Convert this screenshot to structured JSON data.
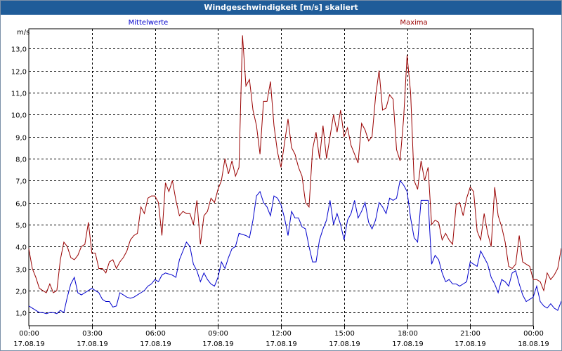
{
  "window": {
    "title": "Windgeschwindigkeit [m/s] skaliert"
  },
  "chart_data": {
    "type": "line",
    "title": "Windgeschwindigkeit [m/s] skaliert",
    "ylabel": "m/s",
    "ylim": [
      0.4,
      13.9
    ],
    "y_ticks": [
      "1,0",
      "2,0",
      "3,0",
      "4,0",
      "5,0",
      "6,0",
      "7,0",
      "8,0",
      "9,0",
      "10,0",
      "11,0",
      "12,0",
      "13,0"
    ],
    "x_ticks": [
      {
        "time": "00:00",
        "date": "17.08.19"
      },
      {
        "time": "03:00",
        "date": "17.08.19"
      },
      {
        "time": "06:00",
        "date": "17.08.19"
      },
      {
        "time": "09:00",
        "date": "17.08.19"
      },
      {
        "time": "12:00",
        "date": "17.08.19"
      },
      {
        "time": "15:00",
        "date": "17.08.19"
      },
      {
        "time": "18:00",
        "date": "17.08.19"
      },
      {
        "time": "21:00",
        "date": "17.08.19"
      },
      {
        "time": "00:00",
        "date": "18.08.19"
      }
    ],
    "grid": true,
    "interval_minutes": 10,
    "series": [
      {
        "name": "Mittelwerte",
        "color": "#0000cc",
        "values": [
          1.3,
          1.2,
          1.1,
          1.0,
          1.0,
          0.95,
          1.0,
          1.0,
          0.95,
          1.1,
          1.0,
          1.7,
          2.3,
          2.6,
          1.9,
          1.8,
          1.9,
          2.0,
          2.1,
          2.0,
          1.9,
          1.6,
          1.5,
          1.5,
          1.25,
          1.3,
          1.9,
          1.8,
          1.7,
          1.65,
          1.7,
          1.8,
          1.9,
          2.0,
          2.2,
          2.3,
          2.5,
          2.4,
          2.7,
          2.8,
          2.75,
          2.7,
          2.6,
          3.4,
          3.8,
          4.2,
          4.0,
          3.2,
          2.9,
          2.4,
          2.8,
          2.5,
          2.3,
          2.2,
          2.6,
          3.3,
          3.0,
          3.5,
          3.9,
          4.0,
          4.6,
          4.55,
          4.5,
          4.4,
          5.2,
          6.3,
          6.5,
          6.0,
          5.8,
          5.4,
          6.3,
          6.2,
          5.9,
          5.3,
          4.5,
          5.6,
          5.3,
          5.3,
          4.9,
          4.8,
          4.0,
          3.3,
          3.3,
          4.3,
          4.8,
          5.2,
          6.1,
          5.0,
          5.5,
          5.0,
          4.3,
          5.2,
          5.5,
          6.1,
          5.3,
          5.6,
          6.0,
          5.1,
          4.8,
          5.2,
          6.0,
          5.8,
          5.5,
          6.2,
          6.1,
          6.2,
          7.0,
          6.8,
          6.5,
          5.3,
          4.4,
          4.2,
          6.1,
          6.1,
          6.1,
          3.2,
          3.6,
          3.4,
          2.8,
          2.4,
          2.5,
          2.3,
          2.3,
          2.2,
          2.3,
          2.4,
          3.3,
          3.2,
          3.1,
          3.8,
          3.5,
          3.2,
          2.6,
          2.3,
          1.9,
          2.5,
          2.4,
          2.2,
          2.8,
          2.9,
          2.3,
          1.8,
          1.5,
          1.6,
          1.7,
          2.2,
          1.5,
          1.3,
          1.2,
          1.4,
          1.2,
          1.1,
          1.5,
          1.3,
          1.6,
          1.9,
          1.8,
          2.6,
          2.6,
          2.7,
          2.4,
          2.0,
          1.9
        ]
      },
      {
        "name": "Maxima",
        "color": "#990000",
        "values": [
          3.9,
          3.0,
          2.6,
          2.1,
          2.0,
          1.9,
          2.3,
          1.9,
          2.0,
          3.4,
          4.2,
          4.0,
          3.5,
          3.4,
          3.6,
          4.0,
          4.1,
          5.1,
          3.7,
          3.7,
          3.0,
          3.0,
          2.8,
          3.3,
          3.4,
          3.0,
          3.3,
          3.5,
          3.8,
          4.3,
          4.5,
          4.6,
          5.8,
          5.5,
          6.2,
          6.3,
          6.3,
          6.0,
          4.5,
          6.9,
          6.5,
          7.0,
          6.1,
          5.4,
          5.6,
          5.5,
          5.5,
          5.0,
          6.1,
          4.1,
          5.4,
          5.6,
          6.2,
          6.0,
          6.6,
          7.0,
          8.0,
          7.3,
          7.9,
          7.2,
          7.6,
          13.6,
          11.3,
          11.6,
          10.2,
          9.5,
          8.2,
          10.6,
          10.6,
          11.5,
          9.5,
          8.3,
          7.6,
          8.7,
          9.8,
          8.5,
          8.2,
          7.6,
          7.2,
          6.0,
          5.8,
          8.4,
          9.2,
          8.0,
          9.5,
          8.0,
          9.0,
          10.0,
          9.2,
          10.2,
          9.0,
          9.4,
          8.6,
          8.2,
          7.8,
          9.6,
          9.3,
          8.8,
          9.0,
          10.8,
          12.0,
          10.2,
          10.3,
          10.9,
          10.7,
          8.4,
          7.9,
          9.8,
          12.7,
          11.0,
          7.0,
          6.6,
          7.9,
          7.0,
          7.6,
          5.0,
          5.2,
          5.1,
          4.3,
          4.6,
          4.3,
          4.1,
          5.9,
          6.0,
          5.4,
          6.2,
          6.7,
          6.5,
          4.7,
          4.3,
          5.5,
          4.6,
          4.0,
          6.7,
          5.4,
          4.9,
          4.2,
          3.1,
          3.0,
          3.2,
          4.5,
          3.3,
          3.2,
          3.1,
          2.5,
          2.5,
          2.4,
          2.0,
          2.8,
          2.5,
          2.7,
          3.0,
          3.9,
          4.2,
          4.3,
          4.2,
          3.0
        ]
      }
    ]
  }
}
